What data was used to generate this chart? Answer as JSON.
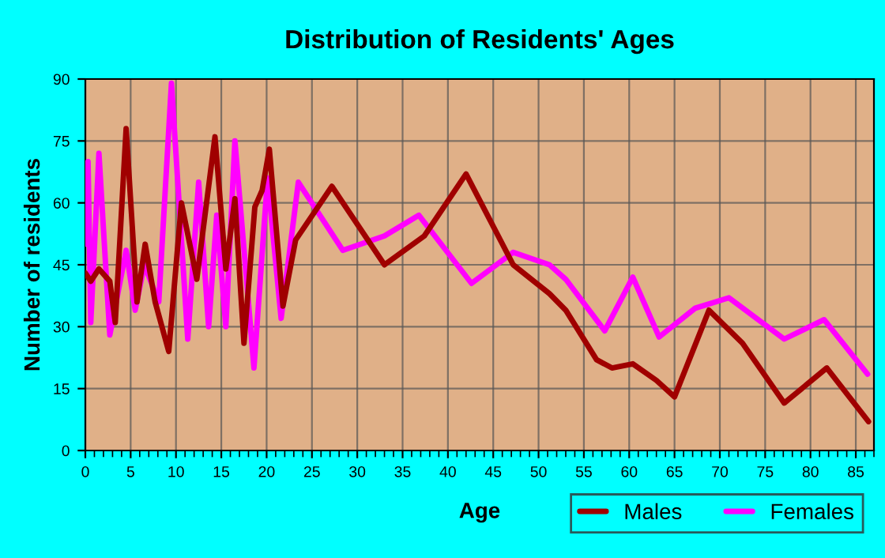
{
  "chart_data": {
    "type": "line",
    "title": "Distribution of Residents' Ages",
    "xlabel": "Age",
    "ylabel": "Number of residents",
    "xlim": [
      0,
      87
    ],
    "xticks": [
      0,
      5,
      10,
      15,
      20,
      25,
      30,
      35,
      40,
      45,
      50,
      55,
      60,
      65,
      70,
      75,
      80,
      85
    ],
    "ylim": [
      0,
      90
    ],
    "yticks": [
      0,
      15,
      30,
      45,
      60,
      75,
      90
    ],
    "grid": true,
    "legend": "bottom right",
    "marker": "none",
    "line_style": "solid",
    "series": [
      {
        "name": "Males",
        "color": "#a00000",
        "x": [
          0,
          0.6,
          1.5,
          2.7,
          3.3,
          4.5,
          5.7,
          6.6,
          7.7,
          9.2,
          10.6,
          12.3,
          14.3,
          15.5,
          16.5,
          17.5,
          18.7,
          19.5,
          20.3,
          21.8,
          23.2,
          27.2,
          33,
          37.4,
          42,
          47.2,
          51.2,
          53,
          56.4,
          58.1,
          60.4,
          63,
          65,
          68.8,
          72.5,
          77.1,
          81.8,
          86.4
        ],
        "values": [
          43,
          41,
          44,
          41,
          31,
          78,
          36,
          50,
          36,
          24,
          60,
          41.5,
          76,
          44,
          61,
          26,
          59,
          63,
          73,
          35,
          51,
          64,
          45,
          52,
          67,
          45,
          38,
          34,
          22,
          20,
          21,
          17,
          13,
          34,
          26,
          11.5,
          20,
          7
        ]
      },
      {
        "name": "Females",
        "color": "#ff00ff",
        "x": [
          0,
          0.3,
          0.6,
          1.5,
          2.7,
          4.5,
          5.5,
          6.5,
          8.1,
          9.5,
          11.3,
          12.5,
          13.6,
          14.5,
          15.5,
          16.5,
          18.6,
          20.1,
          21.6,
          23.5,
          28.4,
          33,
          36.8,
          42.6,
          47.2,
          51.2,
          53,
          57.3,
          60.4,
          63.3,
          67.3,
          71,
          77.1,
          81.5,
          86.3
        ],
        "values": [
          50,
          70,
          31,
          72,
          28,
          48.5,
          34,
          45,
          36,
          89,
          27,
          65,
          30,
          57,
          30,
          75,
          20,
          66,
          32,
          65,
          48.5,
          52,
          57,
          40.5,
          48,
          45,
          41.5,
          29,
          42,
          27.5,
          34.5,
          37,
          27,
          31.7,
          18.5
        ]
      }
    ]
  }
}
